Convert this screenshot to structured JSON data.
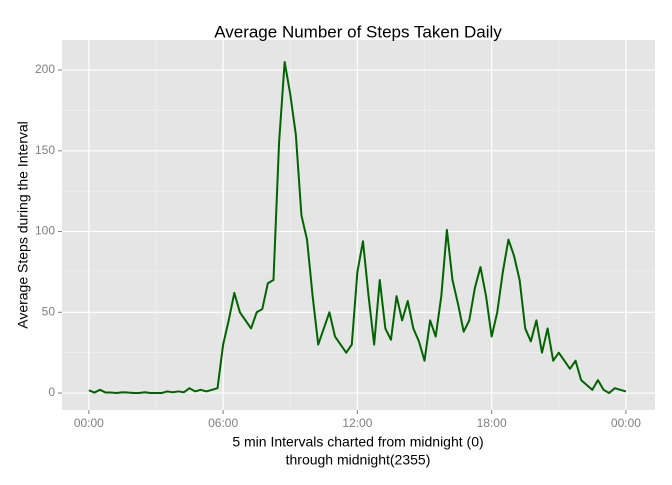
{
  "chart_data": {
    "type": "line",
    "title": "Average Number of Steps Taken Daily",
    "x_label": [
      "5 min Intervals charted from midnight (0)",
      "through midnight(2355)"
    ],
    "y_label": "Average Steps during the Interval",
    "x": [
      0,
      0.25,
      0.5,
      0.75,
      1,
      1.25,
      1.5,
      1.75,
      2,
      2.25,
      2.5,
      2.75,
      3,
      3.25,
      3.5,
      3.75,
      4,
      4.25,
      4.5,
      4.75,
      5,
      5.25,
      5.5,
      5.75,
      6,
      6.25,
      6.5,
      6.75,
      7,
      7.25,
      7.5,
      7.75,
      8,
      8.25,
      8.5,
      8.75,
      9,
      9.25,
      9.5,
      9.75,
      10,
      10.25,
      10.5,
      10.75,
      11,
      11.25,
      11.5,
      11.75,
      12,
      12.25,
      12.5,
      12.75,
      13,
      13.25,
      13.5,
      13.75,
      14,
      14.25,
      14.5,
      14.75,
      15,
      15.25,
      15.5,
      15.75,
      16,
      16.25,
      16.5,
      16.75,
      17,
      17.25,
      17.5,
      17.75,
      18,
      18.25,
      18.5,
      18.75,
      19,
      19.25,
      19.5,
      19.75,
      20,
      20.25,
      20.5,
      20.75,
      21,
      21.25,
      21.5,
      21.75,
      22,
      22.25,
      22.5,
      22.75,
      23,
      23.25,
      23.5,
      23.75,
      24
    ],
    "series": [
      {
        "name": "steps",
        "color": "#006400",
        "values": [
          1.7,
          0.3,
          2,
          0.3,
          0.3,
          0,
          0.5,
          0.3,
          0,
          0,
          0.5,
          0,
          0,
          0,
          1,
          0.5,
          1,
          0.5,
          3,
          1,
          2,
          1,
          2,
          3,
          30,
          45,
          62,
          50,
          45,
          40,
          50,
          52,
          68,
          70,
          155,
          205,
          185,
          160,
          110,
          95,
          60,
          30,
          40,
          50,
          35,
          30,
          25,
          30,
          75,
          94,
          60,
          30,
          70,
          40,
          33,
          60,
          45,
          57,
          40,
          32,
          20,
          45,
          35,
          60,
          101,
          70,
          55,
          38,
          45,
          65,
          78,
          60,
          35,
          50,
          75,
          95,
          85,
          70,
          40,
          32,
          45,
          25,
          40,
          20,
          25,
          20,
          15,
          20,
          8,
          5,
          2,
          8,
          2,
          0,
          3,
          2,
          1
        ]
      }
    ],
    "xlim": [
      -1.2,
      25.3
    ],
    "ylim": [
      -10.5,
      218.6
    ],
    "xticks": [
      {
        "value": 0,
        "label": "00:00"
      },
      {
        "value": 6,
        "label": "06:00"
      },
      {
        "value": 12,
        "label": "12:00"
      },
      {
        "value": 18,
        "label": "18:00"
      },
      {
        "value": 24,
        "label": "00:00"
      }
    ],
    "yticks": [
      0,
      50,
      100,
      150,
      200
    ],
    "grid": true
  }
}
